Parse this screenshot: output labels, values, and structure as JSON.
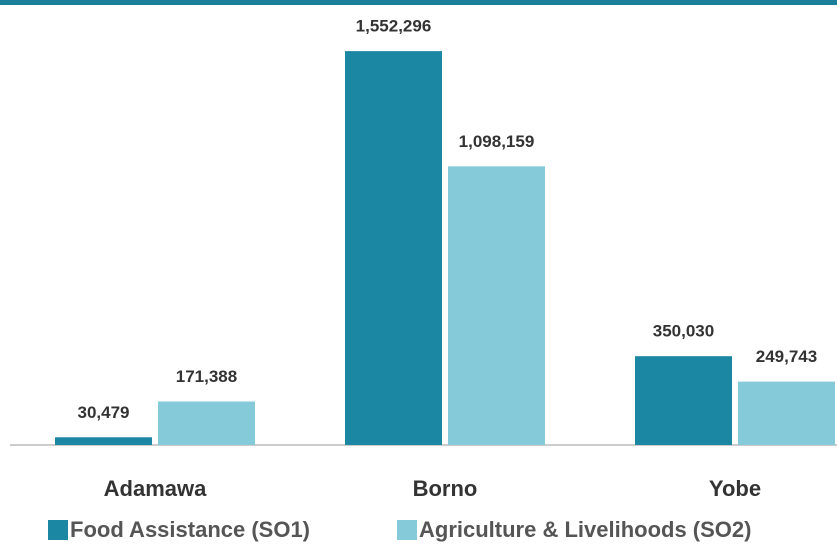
{
  "chart_data": {
    "type": "bar",
    "categories": [
      "Adamawa",
      "Borno",
      "Yobe"
    ],
    "series": [
      {
        "name": "Food Assistance (SO1)",
        "color": "#1b87a3",
        "values": [
          30479,
          1552296,
          350030
        ],
        "value_labels": [
          "30,479",
          "1,552,296",
          "350,030"
        ]
      },
      {
        "name": "Agriculture & Livelihoods (SO2)",
        "color": "#84cad8",
        "values": [
          171388,
          1098159,
          249743
        ],
        "value_labels": [
          "171,388",
          "1,098,159",
          "249,743"
        ]
      }
    ],
    "ylim": [
      0,
      1600000
    ]
  }
}
